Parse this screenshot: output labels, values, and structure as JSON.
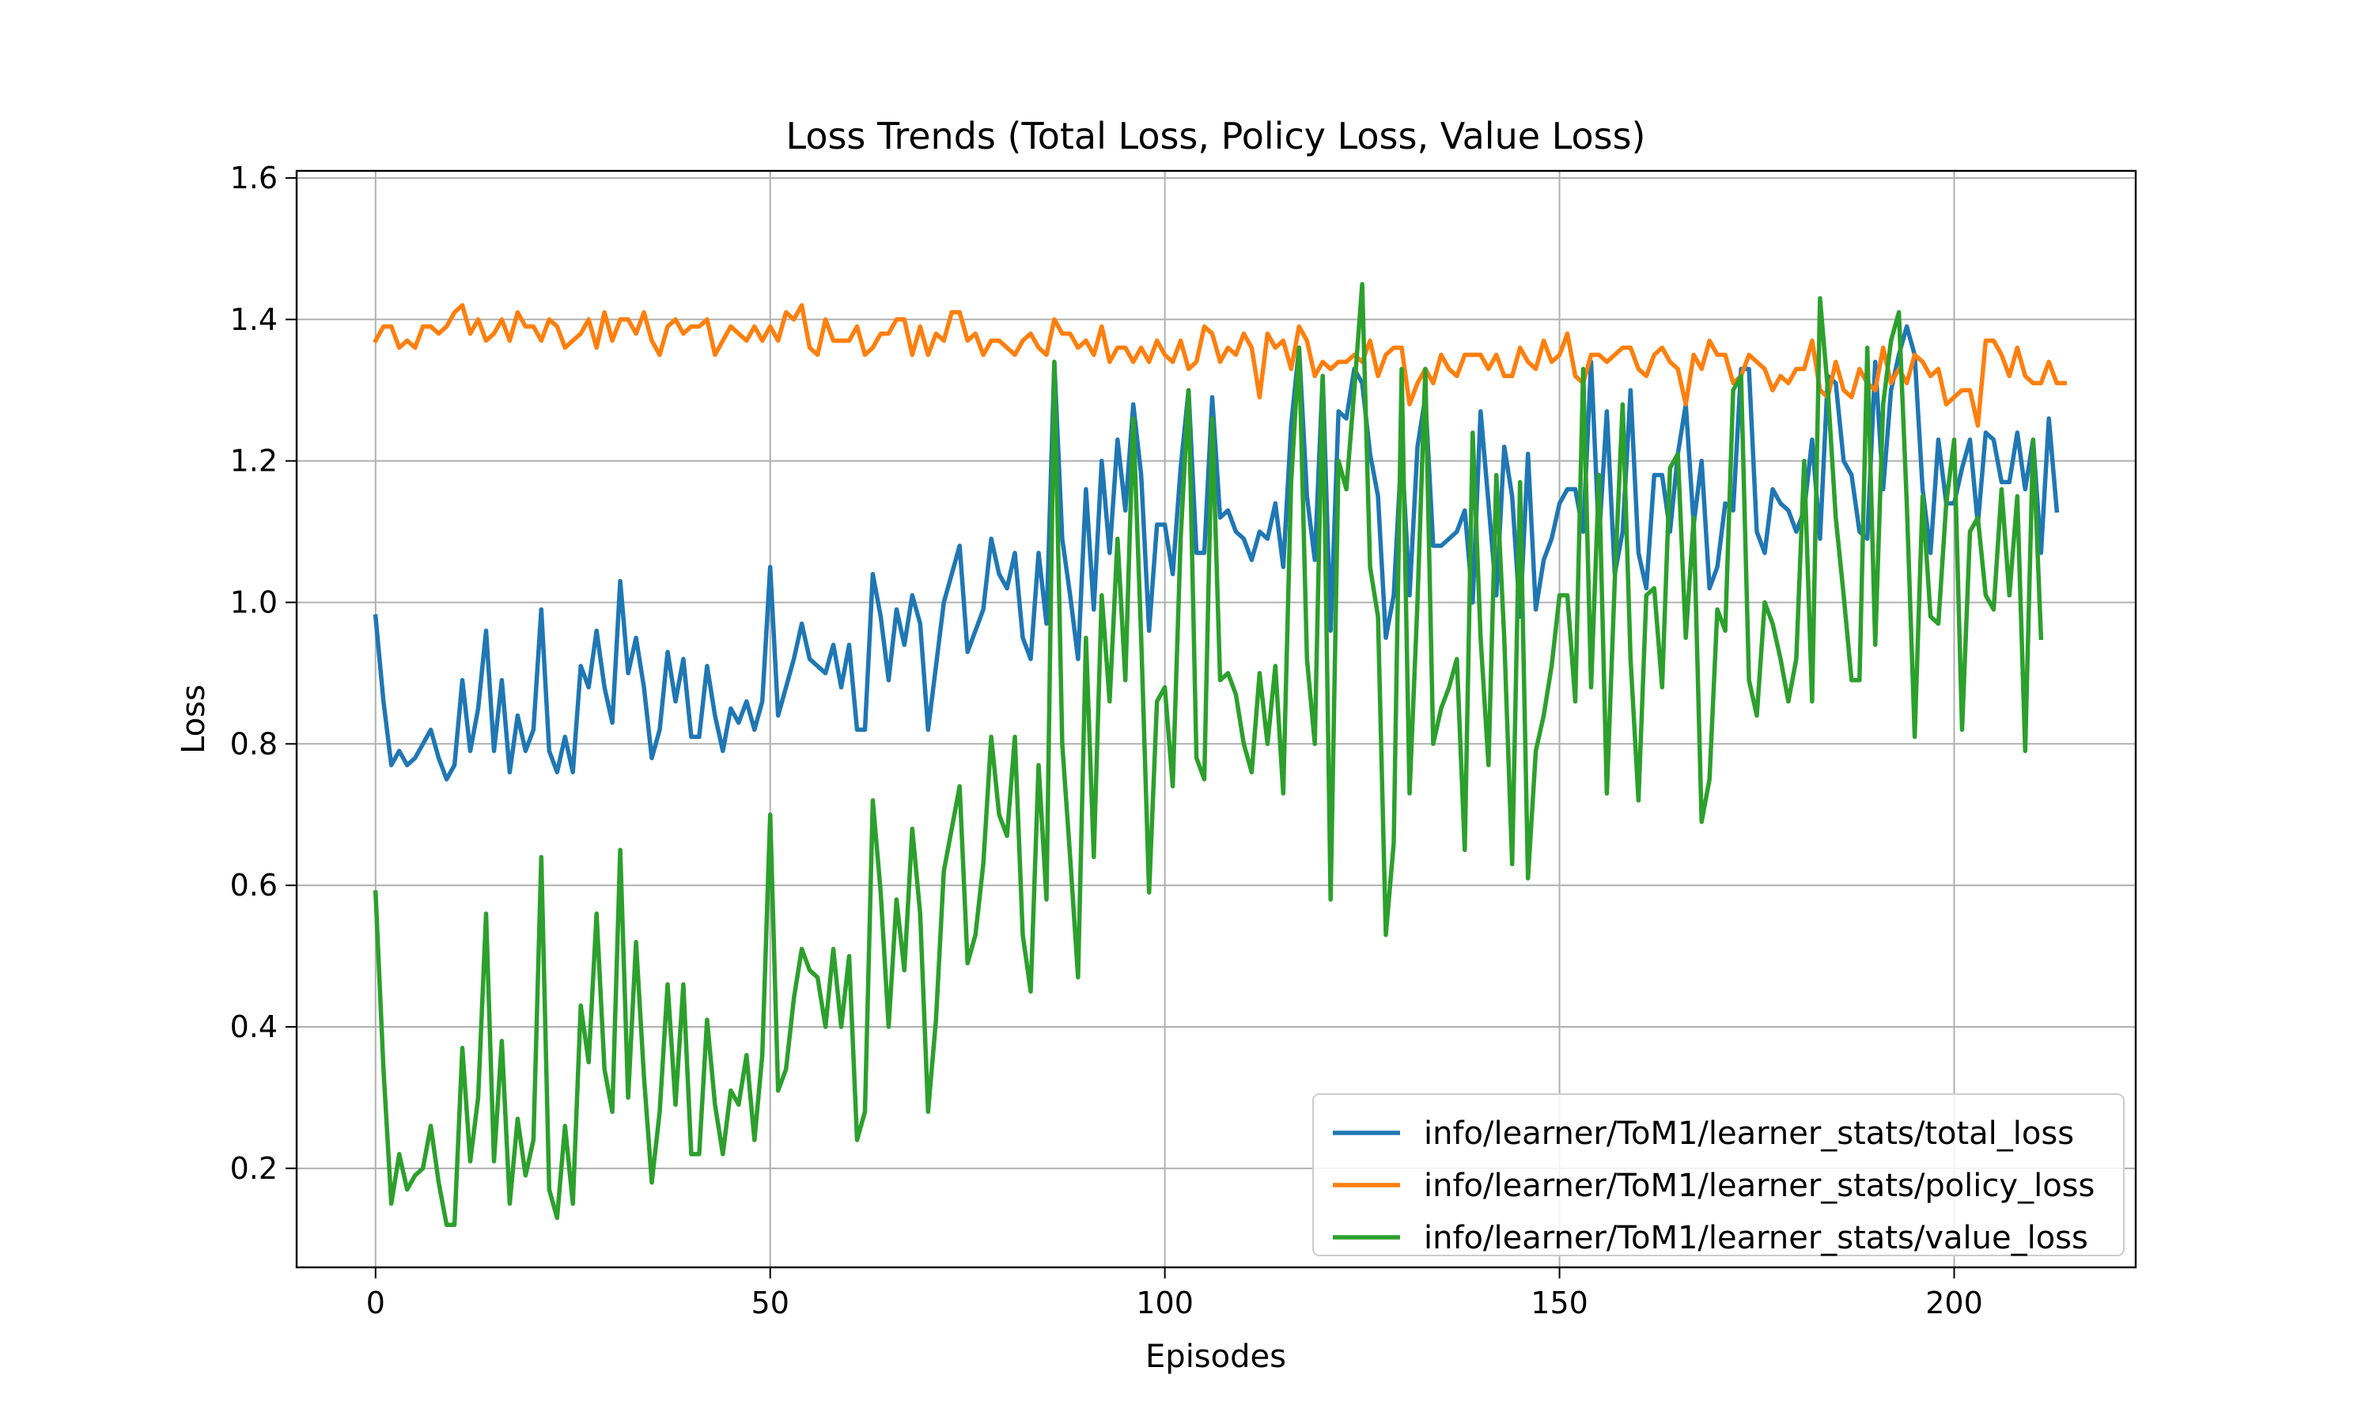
{
  "chart_data": {
    "type": "line",
    "title": "Loss Trends (Total Loss, Policy Loss, Value Loss)",
    "xlabel": "Episodes",
    "ylabel": "Loss",
    "xlim": [
      -10,
      223
    ],
    "ylim": [
      0.06,
      1.61
    ],
    "xticks": [
      0,
      50,
      100,
      150,
      200
    ],
    "yticks": [
      0.2,
      0.4,
      0.6,
      0.8,
      1.0,
      1.2,
      1.4,
      1.6
    ],
    "ytick_labels": [
      "0.2",
      "0.4",
      "0.6",
      "0.8",
      "1.0",
      "1.2",
      "1.4",
      "1.6"
    ],
    "grid": true,
    "legend_position": "lower-right",
    "x_start": 0,
    "x_step": 1,
    "series": [
      {
        "name": "info/learner/ToM1/learner_stats/total_loss",
        "color": "#1f77b4",
        "values": [
          0.98,
          0.86,
          0.77,
          0.79,
          0.77,
          0.78,
          0.8,
          0.82,
          0.78,
          0.75,
          0.77,
          0.89,
          0.79,
          0.85,
          0.96,
          0.79,
          0.89,
          0.76,
          0.84,
          0.79,
          0.82,
          0.99,
          0.79,
          0.76,
          0.81,
          0.76,
          0.91,
          0.88,
          0.96,
          0.88,
          0.83,
          1.03,
          0.9,
          0.95,
          0.88,
          0.78,
          0.82,
          0.93,
          0.86,
          0.92,
          0.81,
          0.81,
          0.91,
          0.84,
          0.79,
          0.85,
          0.83,
          0.86,
          0.82,
          0.86,
          1.05,
          0.84,
          0.88,
          0.92,
          0.97,
          0.92,
          0.91,
          0.9,
          0.94,
          0.88,
          0.94,
          0.82,
          0.82,
          1.04,
          0.98,
          0.89,
          0.99,
          0.94,
          1.01,
          0.97,
          0.82,
          0.91,
          1.0,
          1.04,
          1.08,
          0.93,
          0.96,
          0.99,
          1.09,
          1.04,
          1.02,
          1.07,
          0.95,
          0.92,
          1.07,
          0.97,
          1.34,
          1.09,
          1.01,
          0.92,
          1.16,
          0.99,
          1.2,
          1.07,
          1.23,
          1.13,
          1.28,
          1.18,
          0.96,
          1.11,
          1.11,
          1.04,
          1.19,
          1.3,
          1.07,
          1.07,
          1.29,
          1.12,
          1.13,
          1.1,
          1.09,
          1.06,
          1.1,
          1.09,
          1.14,
          1.05,
          1.25,
          1.36,
          1.15,
          1.06,
          1.32,
          0.96,
          1.27,
          1.26,
          1.33,
          1.31,
          1.21,
          1.15,
          0.95,
          1.01,
          1.22,
          1.01,
          1.22,
          1.29,
          1.08,
          1.08,
          1.09,
          1.1,
          1.13,
          1.0,
          1.27,
          1.14,
          1.01,
          1.22,
          1.15,
          0.98,
          1.21,
          0.99,
          1.06,
          1.09,
          1.14,
          1.16,
          1.16,
          1.1,
          1.34,
          1.09,
          1.27,
          1.04,
          1.1,
          1.3,
          1.07,
          1.02,
          1.18,
          1.18,
          1.1,
          1.21,
          1.28,
          1.11,
          1.2,
          1.02,
          1.05,
          1.14,
          1.13,
          1.33,
          1.33,
          1.1,
          1.07,
          1.16,
          1.14,
          1.13,
          1.1,
          1.13,
          1.23,
          1.09,
          1.32,
          1.31,
          1.2,
          1.18,
          1.1,
          1.09,
          1.34,
          1.16,
          1.3,
          1.35,
          1.39,
          1.35,
          1.16,
          1.07,
          1.23,
          1.14,
          1.14,
          1.19,
          1.23,
          1.11,
          1.24,
          1.23,
          1.17,
          1.17,
          1.24,
          1.16,
          1.23,
          1.07,
          1.26,
          1.13
        ]
      },
      {
        "name": "info/learner/ToM1/learner_stats/policy_loss",
        "color": "#ff7f0e",
        "values": [
          1.37,
          1.39,
          1.39,
          1.36,
          1.37,
          1.36,
          1.39,
          1.39,
          1.38,
          1.39,
          1.41,
          1.42,
          1.38,
          1.4,
          1.37,
          1.38,
          1.4,
          1.37,
          1.41,
          1.39,
          1.39,
          1.37,
          1.4,
          1.39,
          1.36,
          1.37,
          1.38,
          1.4,
          1.36,
          1.41,
          1.37,
          1.4,
          1.4,
          1.38,
          1.41,
          1.37,
          1.35,
          1.39,
          1.4,
          1.38,
          1.39,
          1.39,
          1.4,
          1.35,
          1.37,
          1.39,
          1.38,
          1.37,
          1.39,
          1.37,
          1.39,
          1.37,
          1.41,
          1.4,
          1.42,
          1.36,
          1.35,
          1.4,
          1.37,
          1.37,
          1.37,
          1.39,
          1.35,
          1.36,
          1.38,
          1.38,
          1.4,
          1.4,
          1.35,
          1.39,
          1.35,
          1.38,
          1.37,
          1.41,
          1.41,
          1.37,
          1.38,
          1.35,
          1.37,
          1.37,
          1.36,
          1.35,
          1.37,
          1.38,
          1.36,
          1.35,
          1.4,
          1.38,
          1.38,
          1.36,
          1.37,
          1.35,
          1.39,
          1.34,
          1.36,
          1.36,
          1.34,
          1.36,
          1.34,
          1.37,
          1.35,
          1.34,
          1.37,
          1.33,
          1.34,
          1.39,
          1.38,
          1.34,
          1.36,
          1.35,
          1.38,
          1.36,
          1.29,
          1.38,
          1.36,
          1.37,
          1.33,
          1.39,
          1.37,
          1.32,
          1.34,
          1.33,
          1.34,
          1.34,
          1.35,
          1.34,
          1.37,
          1.32,
          1.35,
          1.36,
          1.36,
          1.28,
          1.31,
          1.33,
          1.31,
          1.35,
          1.33,
          1.32,
          1.35,
          1.35,
          1.35,
          1.33,
          1.35,
          1.32,
          1.32,
          1.36,
          1.34,
          1.33,
          1.37,
          1.34,
          1.35,
          1.38,
          1.32,
          1.31,
          1.35,
          1.35,
          1.34,
          1.35,
          1.36,
          1.36,
          1.33,
          1.32,
          1.35,
          1.36,
          1.34,
          1.33,
          1.28,
          1.35,
          1.33,
          1.37,
          1.35,
          1.35,
          1.31,
          1.32,
          1.35,
          1.34,
          1.33,
          1.3,
          1.32,
          1.31,
          1.33,
          1.33,
          1.37,
          1.3,
          1.29,
          1.34,
          1.3,
          1.29,
          1.33,
          1.31,
          1.3,
          1.36,
          1.31,
          1.33,
          1.31,
          1.35,
          1.34,
          1.32,
          1.33,
          1.28,
          1.29,
          1.3,
          1.3,
          1.25,
          1.37,
          1.37,
          1.35,
          1.32,
          1.36,
          1.32,
          1.31,
          1.31,
          1.34,
          1.31,
          1.31
        ]
      },
      {
        "name": "info/learner/ToM1/learner_stats/value_loss",
        "color": "#2ca02c",
        "values": [
          0.59,
          0.34,
          0.15,
          0.22,
          0.17,
          0.19,
          0.2,
          0.26,
          0.18,
          0.12,
          0.12,
          0.37,
          0.21,
          0.3,
          0.56,
          0.21,
          0.38,
          0.15,
          0.27,
          0.19,
          0.24,
          0.64,
          0.17,
          0.13,
          0.26,
          0.15,
          0.43,
          0.35,
          0.56,
          0.34,
          0.28,
          0.65,
          0.3,
          0.52,
          0.33,
          0.18,
          0.28,
          0.46,
          0.29,
          0.46,
          0.22,
          0.22,
          0.41,
          0.29,
          0.22,
          0.31,
          0.29,
          0.36,
          0.24,
          0.36,
          0.7,
          0.31,
          0.34,
          0.44,
          0.51,
          0.48,
          0.47,
          0.4,
          0.51,
          0.4,
          0.5,
          0.24,
          0.28,
          0.72,
          0.59,
          0.4,
          0.58,
          0.48,
          0.68,
          0.56,
          0.28,
          0.41,
          0.62,
          0.68,
          0.74,
          0.49,
          0.53,
          0.63,
          0.81,
          0.7,
          0.67,
          0.81,
          0.53,
          0.45,
          0.77,
          0.58,
          1.34,
          0.8,
          0.64,
          0.47,
          0.95,
          0.64,
          1.01,
          0.86,
          1.09,
          0.89,
          1.26,
          0.95,
          0.59,
          0.86,
          0.88,
          0.74,
          1.09,
          1.3,
          0.78,
          0.75,
          1.26,
          0.89,
          0.9,
          0.87,
          0.8,
          0.76,
          0.9,
          0.8,
          0.91,
          0.73,
          1.17,
          1.36,
          0.92,
          0.8,
          1.32,
          0.58,
          1.2,
          1.16,
          1.3,
          1.45,
          1.05,
          0.98,
          0.53,
          0.66,
          1.33,
          0.73,
          1.0,
          1.33,
          0.8,
          0.85,
          0.88,
          0.92,
          0.65,
          1.24,
          0.95,
          0.77,
          1.18,
          0.95,
          0.63,
          1.17,
          0.61,
          0.79,
          0.84,
          0.91,
          1.01,
          1.01,
          0.86,
          1.33,
          0.88,
          1.18,
          0.73,
          1.03,
          1.28,
          0.92,
          0.72,
          1.01,
          1.02,
          0.88,
          1.19,
          1.21,
          0.95,
          1.12,
          0.69,
          0.75,
          0.99,
          0.96,
          1.3,
          1.32,
          0.89,
          0.84,
          1.0,
          0.97,
          0.92,
          0.86,
          0.92,
          1.2,
          0.86,
          1.43,
          1.3,
          1.12,
          1.01,
          0.89,
          0.89,
          1.36,
          0.94,
          1.28,
          1.37,
          1.41,
          1.14,
          0.81,
          1.15,
          0.98,
          0.97,
          1.14,
          1.23,
          0.82,
          1.1,
          1.12,
          1.01,
          0.99,
          1.16,
          1.01,
          1.15,
          0.79,
          1.23,
          0.95
        ]
      }
    ]
  }
}
